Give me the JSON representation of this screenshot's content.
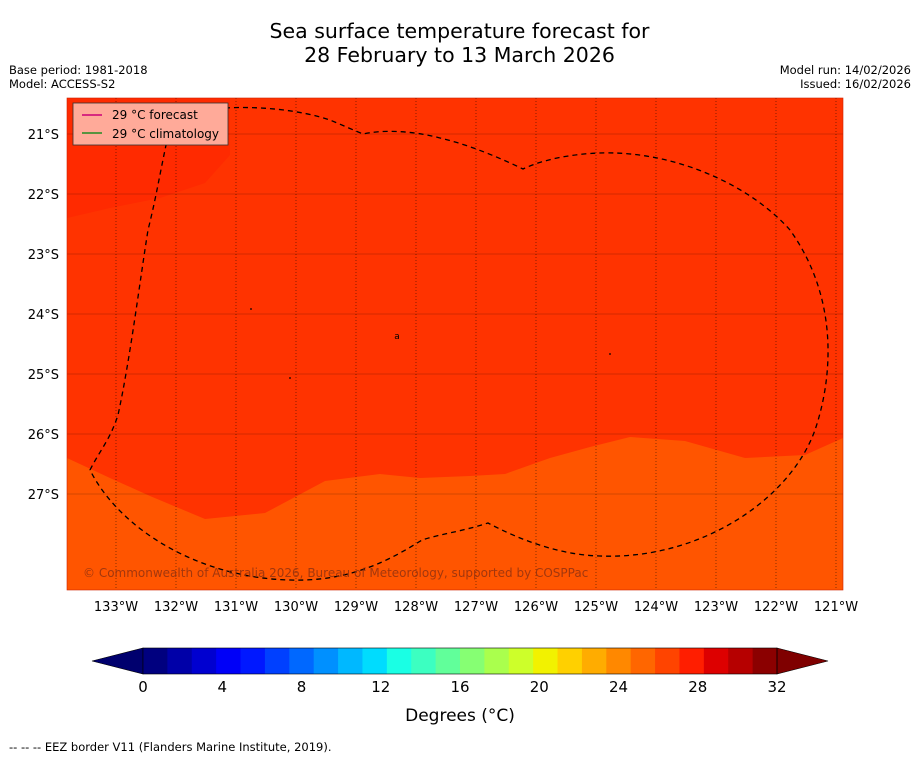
{
  "header": {
    "title_line1": "Sea surface temperature forecast for",
    "title_line2": "28 February to 13 March 2026",
    "base_period": "Base period: 1981-2018",
    "model": "Model: ACCESS-S2",
    "model_run": "Model run: 14/02/2026",
    "issued": "Issued: 16/02/2026"
  },
  "map": {
    "lon_labels": [
      "133°W",
      "132°W",
      "131°W",
      "130°W",
      "129°W",
      "128°W",
      "127°W",
      "126°W",
      "125°W",
      "124°W",
      "123°W",
      "122°W",
      "121°W"
    ],
    "lat_labels": [
      "21°S",
      "22°S",
      "23°S",
      "24°S",
      "25°S",
      "26°S",
      "27°S"
    ],
    "copyright": "© Commonwealth of Australia 2026, Bureau of Meteorology, supported by COSPPac",
    "island_label": "a",
    "zone_colors": {
      "warm_29": "#ff2a00",
      "band_28": "#ff3300",
      "band_27": "#ff5500"
    }
  },
  "legend": {
    "forecast_label": "29 °C  forecast",
    "climatology_label": "29 °C  climatology",
    "forecast_color": "#cc0077",
    "climatology_color": "#228b22"
  },
  "colorbar": {
    "ticks": [
      "0",
      "4",
      "8",
      "12",
      "16",
      "20",
      "24",
      "28",
      "32"
    ],
    "label": "Degrees (°C)",
    "colors": [
      "#00007f",
      "#0000a8",
      "#0000d0",
      "#0000f8",
      "#0018ff",
      "#0040ff",
      "#0068ff",
      "#0090ff",
      "#00b8ff",
      "#00dcfe",
      "#1affe4",
      "#3cffc1",
      "#61ff9a",
      "#86ff73",
      "#aaff4d",
      "#cdff2a",
      "#f2f200",
      "#ffd000",
      "#ffac00",
      "#ff8800",
      "#ff6600",
      "#ff4400",
      "#ff1e00",
      "#dd0000",
      "#b60000",
      "#8b0000"
    ],
    "under_color": "#00006e",
    "over_color": "#7f0000"
  },
  "footer": {
    "eez_note": "--  --  -- EEZ border V11 (Flanders Marine Institute, 2019)."
  }
}
